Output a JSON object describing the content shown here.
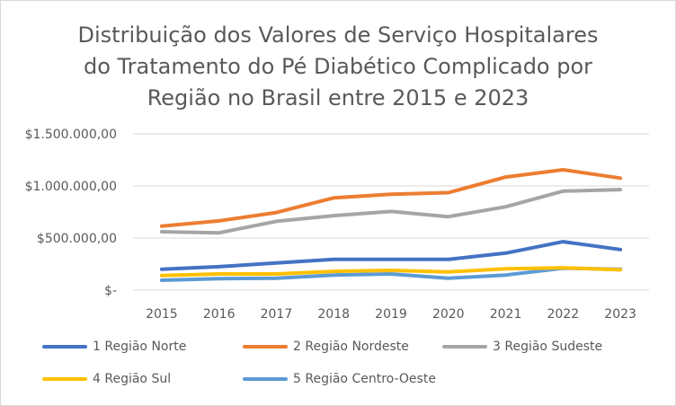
{
  "chart_data": {
    "type": "line",
    "title_lines": [
      "Distribuição dos Valores de Serviço Hospitalares",
      "do Tratamento do Pé Diabético Complicado por",
      "Região no Brasil entre 2015 e 2023"
    ],
    "x": [
      "2015",
      "2016",
      "2017",
      "2018",
      "2019",
      "2020",
      "2021",
      "2022",
      "2023"
    ],
    "ylim": [
      0,
      1500000
    ],
    "y_ticks": [
      {
        "value": 0,
        "label": "$-"
      },
      {
        "value": 500000,
        "label": "$500.000,00"
      },
      {
        "value": 1000000,
        "label": "$1.000.000,00"
      },
      {
        "value": 1500000,
        "label": "$1.500.000,00"
      }
    ],
    "grid": true,
    "legend_position": "bottom",
    "series": [
      {
        "name": "1 Região Norte",
        "color": "#4472C4",
        "values": [
          200000,
          225000,
          260000,
          295000,
          295000,
          295000,
          355000,
          465000,
          390000
        ]
      },
      {
        "name": "2 Região Nordeste",
        "color": "#ED7D31",
        "values": [
          615000,
          665000,
          745000,
          885000,
          920000,
          935000,
          1085000,
          1155000,
          1075000
        ]
      },
      {
        "name": "3 Região Sudeste",
        "color": "#A5A5A5",
        "values": [
          560000,
          550000,
          660000,
          715000,
          755000,
          705000,
          800000,
          950000,
          965000
        ]
      },
      {
        "name": "4 Região Sul",
        "color": "#FFC000",
        "values": [
          140000,
          155000,
          155000,
          180000,
          190000,
          175000,
          205000,
          215000,
          195000
        ]
      },
      {
        "name": "5 Região Centro-Oeste",
        "color": "#5B9BD5",
        "values": [
          95000,
          110000,
          115000,
          145000,
          155000,
          115000,
          145000,
          210000,
          200000
        ]
      }
    ]
  }
}
